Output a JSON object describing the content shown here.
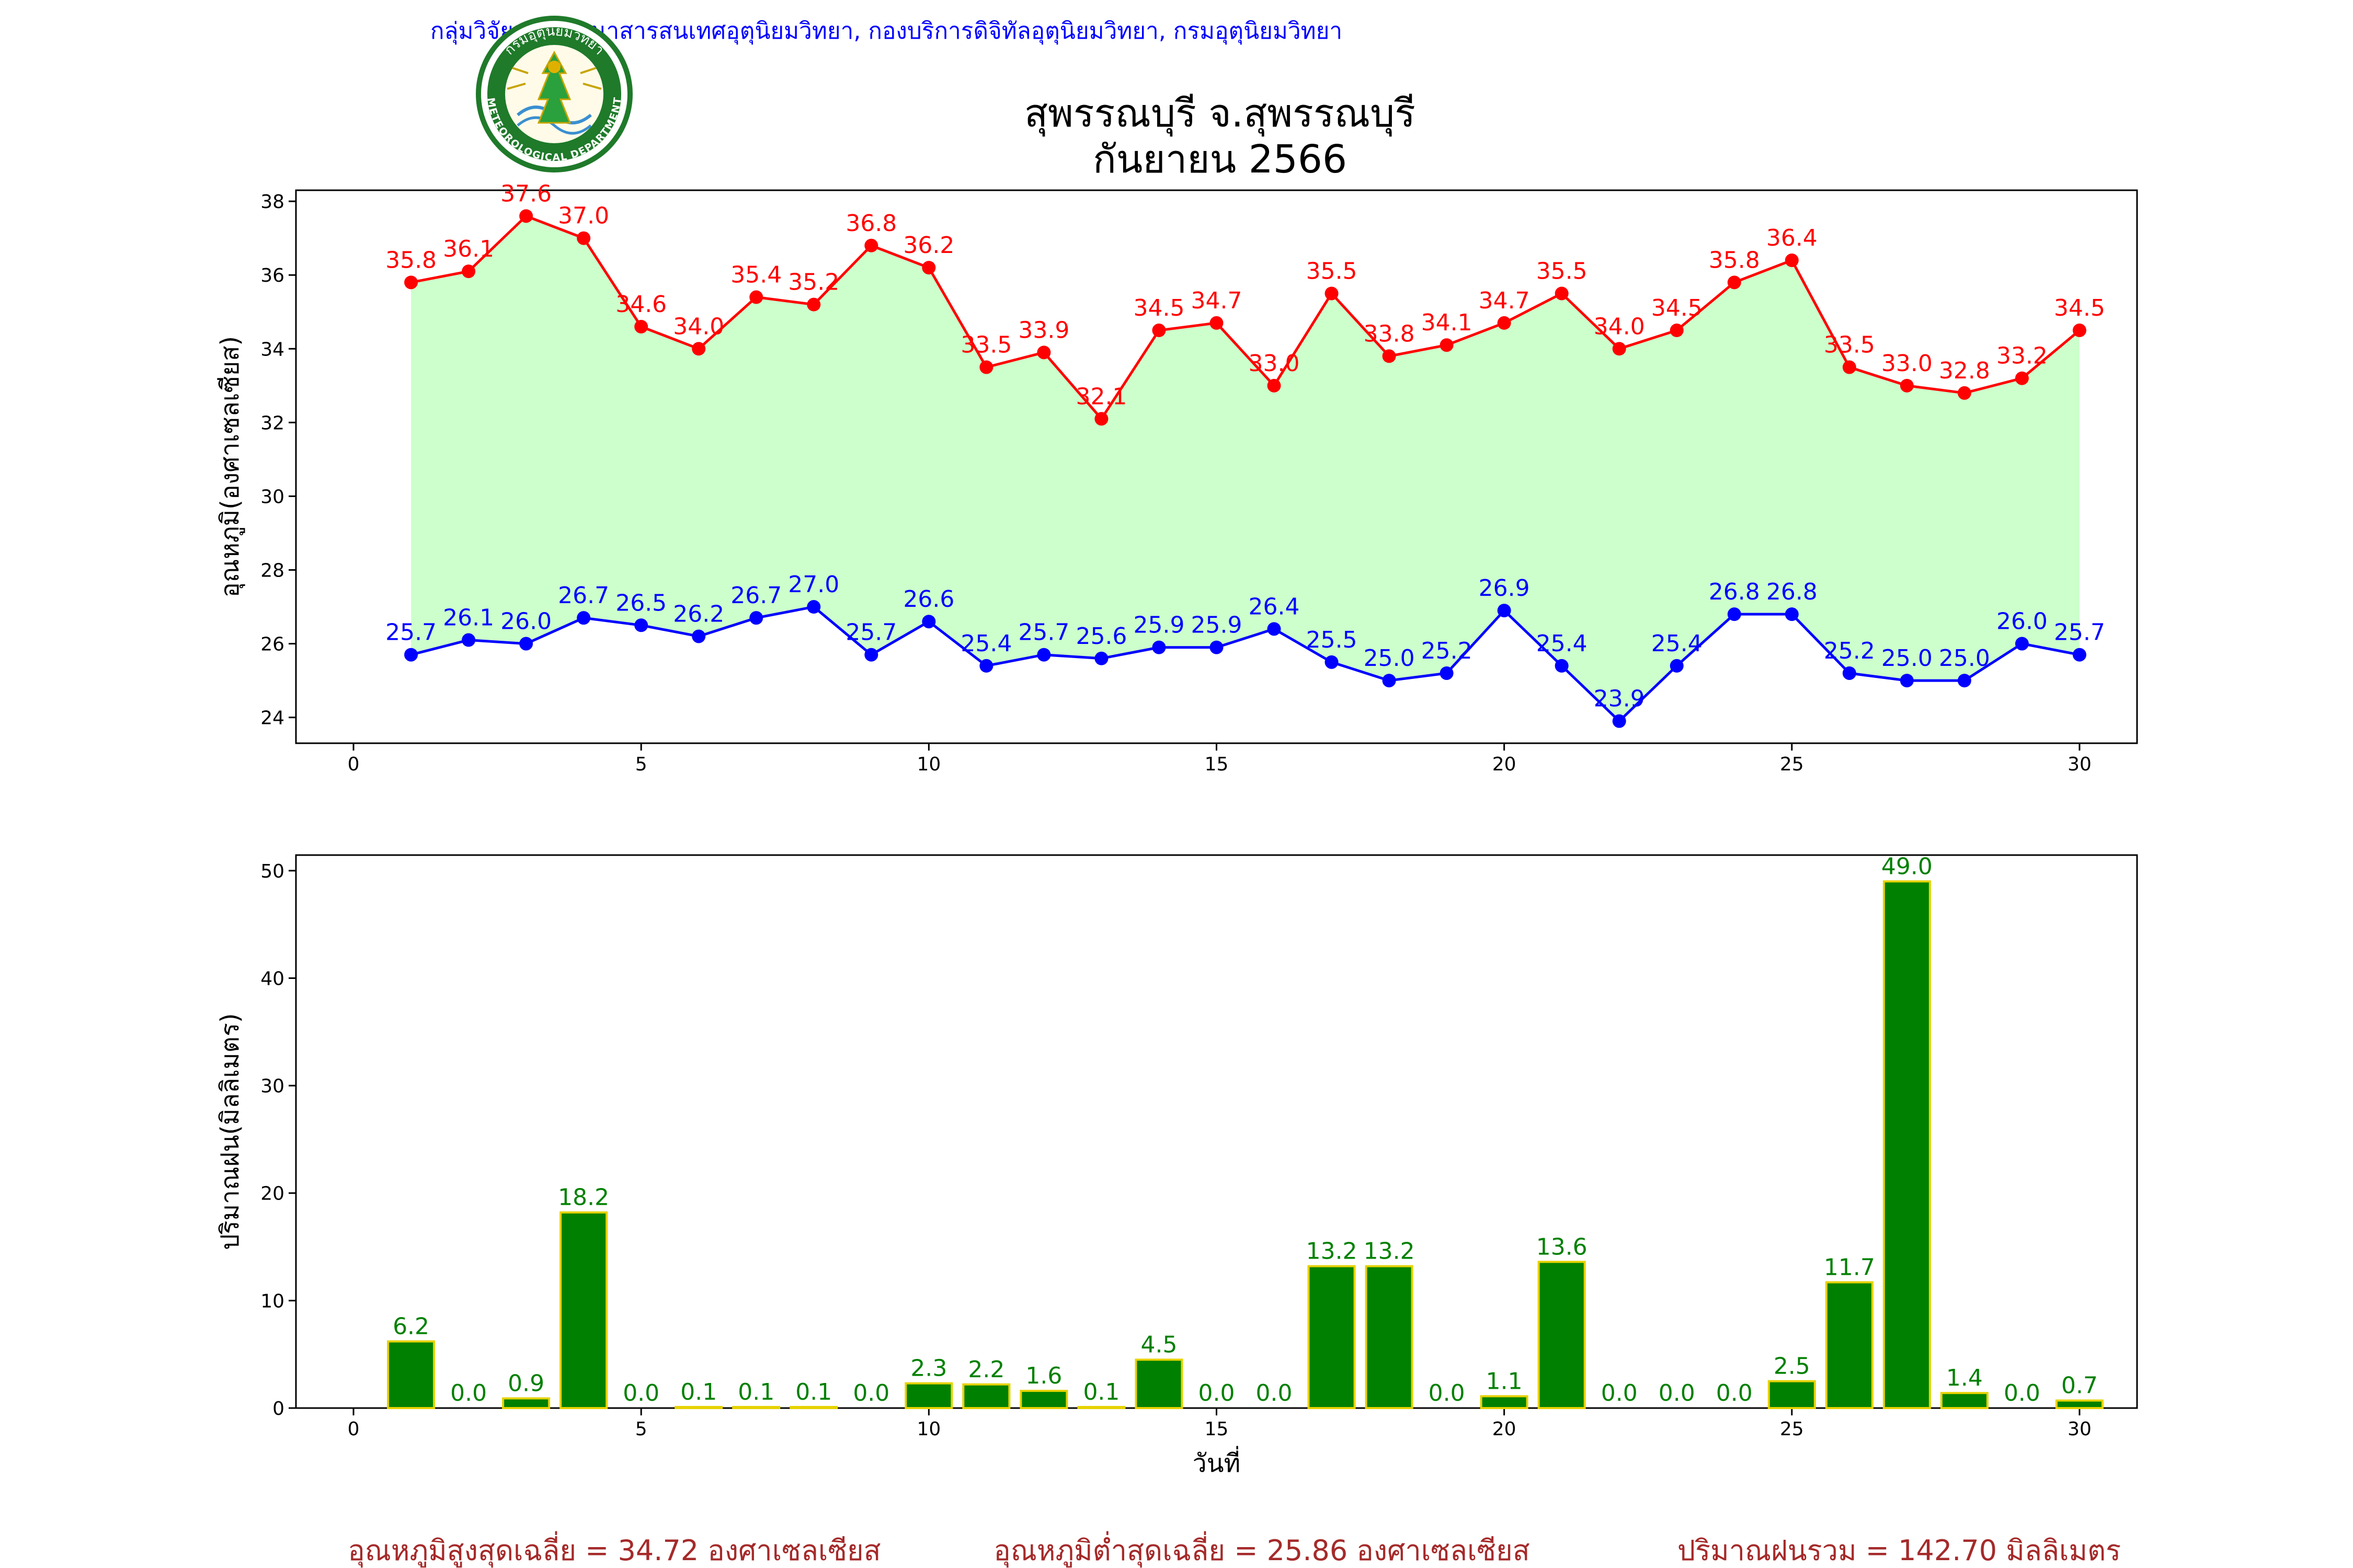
{
  "header": {
    "department": "กลุ่มวิจัยและพัฒนาสารสนเทศอุตุนิยมวิทยา, กองบริการดิจิทัลอุตุนิยมวิทยา, กรมอุตุนิยมวิทยา",
    "title_line1": "สุพรรณบุรี จ.สุพรรณบุรี",
    "title_line2": "กันยายน 2566",
    "logo_top_text": "กรมอุตุนิยมวิทยา",
    "logo_bottom_text": "METEOROLOGICAL DEPARTMENT"
  },
  "colors": {
    "max_line": "#ff0000",
    "min_line": "#0000ff",
    "fill": "#ccffcc",
    "rain_bar": "#008000",
    "rain_edge": "#e6d200",
    "rain_label": "#008000",
    "footer": "#a52a2a",
    "header_text": "#0000ff"
  },
  "chart_data": [
    {
      "type": "line",
      "ylabel": "อุณหภูมิ(องศาเซลเซียส)",
      "xlabel": "",
      "xlim": [
        -1,
        31
      ],
      "ylim": [
        23.3,
        38.3
      ],
      "xticks": [
        0,
        5,
        10,
        15,
        20,
        25,
        30
      ],
      "yticks": [
        24,
        26,
        28,
        30,
        32,
        34,
        36,
        38
      ],
      "x": [
        1,
        2,
        3,
        4,
        5,
        6,
        7,
        8,
        9,
        10,
        11,
        12,
        13,
        14,
        15,
        16,
        17,
        18,
        19,
        20,
        21,
        22,
        23,
        24,
        25,
        26,
        27,
        28,
        29,
        30
      ],
      "series": [
        {
          "values": [
            35.8,
            36.1,
            37.6,
            37.0,
            34.6,
            34.0,
            35.4,
            35.2,
            36.8,
            36.2,
            33.5,
            33.9,
            32.1,
            34.5,
            34.7,
            33.0,
            35.5,
            33.8,
            34.1,
            34.7,
            35.5,
            34.0,
            34.5,
            35.8,
            36.4,
            33.5,
            33.0,
            32.8,
            33.2,
            34.5
          ]
        },
        {
          "values": [
            25.7,
            26.1,
            26.0,
            26.7,
            26.5,
            26.2,
            26.7,
            27.0,
            25.7,
            26.6,
            25.4,
            25.7,
            25.6,
            25.9,
            25.9,
            26.4,
            25.5,
            25.0,
            25.2,
            26.9,
            25.4,
            23.9,
            25.4,
            26.8,
            26.8,
            25.2,
            25.0,
            25.0,
            26.0,
            25.7
          ]
        }
      ]
    },
    {
      "type": "bar",
      "ylabel": "ปริมาณฝน(มิลลิเมตร)",
      "xlabel": "วันที่",
      "xlim": [
        -1,
        31
      ],
      "ylim": [
        0,
        51.45
      ],
      "xticks": [
        0,
        5,
        10,
        15,
        20,
        25,
        30
      ],
      "yticks": [
        0,
        10,
        20,
        30,
        40,
        50
      ],
      "x": [
        1,
        2,
        3,
        4,
        5,
        6,
        7,
        8,
        9,
        10,
        11,
        12,
        13,
        14,
        15,
        16,
        17,
        18,
        19,
        20,
        21,
        22,
        23,
        24,
        25,
        26,
        27,
        28,
        29,
        30
      ],
      "values": [
        6.2,
        0.0,
        0.9,
        18.2,
        0.0,
        0.1,
        0.1,
        0.1,
        0.0,
        2.3,
        2.2,
        1.6,
        0.1,
        4.5,
        0.0,
        0.0,
        13.2,
        13.2,
        0.0,
        1.1,
        13.6,
        0.0,
        0.0,
        0.0,
        2.5,
        11.7,
        49.0,
        1.4,
        0.0,
        0.7
      ]
    }
  ],
  "footer": {
    "avg_max": "อุณหภูมิสูงสุดเฉลี่ย = 34.72 องศาเซลเซียส",
    "avg_min": "อุณหภูมิต่ำสุดเฉลี่ย = 25.86 องศาเซลเซียส",
    "rain_total": "ปริมาณฝนรวม = 142.70 มิลลิเมตร"
  }
}
